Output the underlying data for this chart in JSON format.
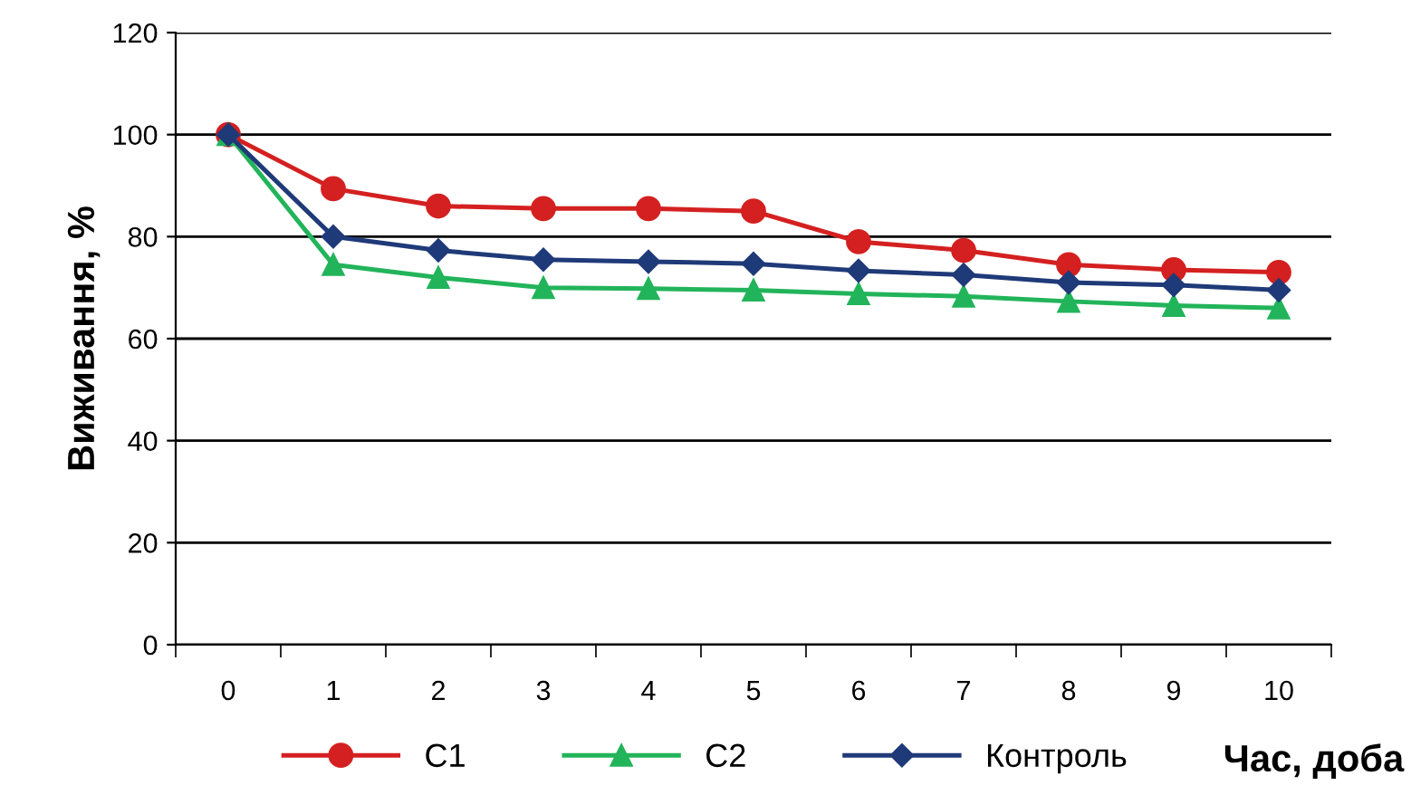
{
  "chart_data": {
    "type": "line",
    "xlabel": "Час, доба",
    "ylabel": "Виживання, %",
    "categories": [
      "0",
      "1",
      "2",
      "3",
      "4",
      "5",
      "6",
      "7",
      "8",
      "9",
      "10"
    ],
    "series": [
      {
        "name": "C1",
        "color": "#d42020",
        "marker": "circle",
        "values": [
          100,
          89.4,
          86,
          85.5,
          85.5,
          85,
          79,
          77.3,
          74.5,
          73.5,
          73
        ]
      },
      {
        "name": "C2",
        "color": "#22b45a",
        "marker": "triangle",
        "values": [
          100,
          74.5,
          72,
          70,
          69.8,
          69.5,
          68.8,
          68.3,
          67.3,
          66.5,
          66
        ]
      },
      {
        "name": "Контроль",
        "color": "#1f3a78",
        "marker": "diamond",
        "values": [
          100,
          80,
          77.3,
          75.5,
          75.1,
          74.7,
          73.3,
          72.5,
          71,
          70.5,
          69.5
        ]
      }
    ],
    "ylim": [
      0,
      120
    ],
    "yticks": [
      0,
      20,
      40,
      60,
      80,
      100,
      120
    ],
    "grid": "y",
    "legend": "bottom",
    "line_style": "solid"
  }
}
